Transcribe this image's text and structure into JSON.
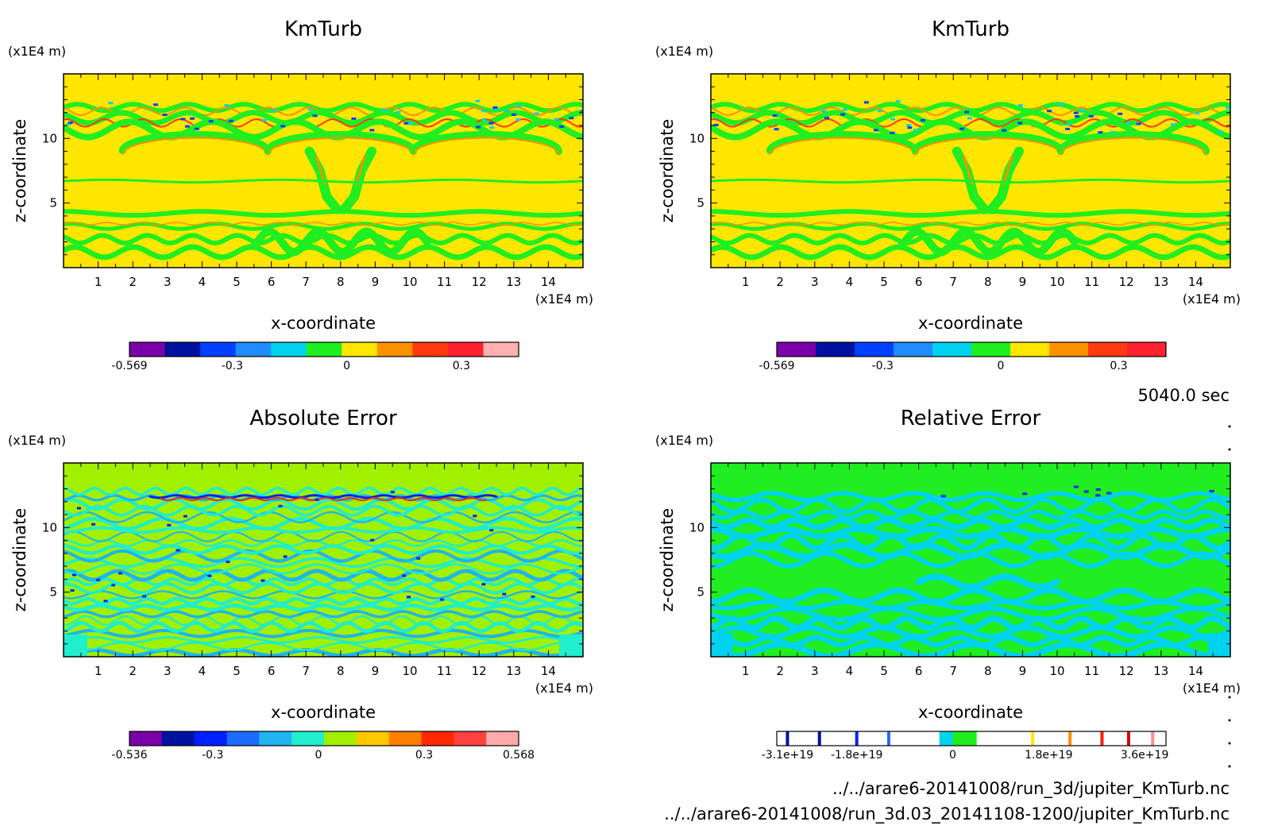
{
  "figure": {
    "time_label": "5040.0 sec",
    "file_paths": [
      "../../arare6-20141008/run_3d/jupiter_KmTurb.nc",
      "../../arare6-20141008/run_3d.03_20141108-1200/jupiter_KmTurb.nc"
    ]
  },
  "chart_data": [
    {
      "type": "heatmap",
      "title": "KmTurb",
      "xlabel": "x-coordinate",
      "ylabel": "z-coordinate",
      "x_unit": "(x1E4 m)",
      "y_unit": "(x1E4 m)",
      "xlim": [
        0,
        15
      ],
      "ylim": [
        0,
        15
      ],
      "x_ticks": [
        1,
        2,
        3,
        4,
        5,
        6,
        7,
        8,
        9,
        10,
        11,
        12,
        13,
        14
      ],
      "y_ticks": [
        5,
        10
      ],
      "background_color": "#ffe600",
      "pattern": "kmturb",
      "colorbar": {
        "colors": [
          "#7a00a8",
          "#0010a0",
          "#0040ff",
          "#1e8cff",
          "#00d2f0",
          "#20ee20",
          "#ffe600",
          "#ff9000",
          "#ff3a10",
          "#ff2030",
          "#ffb0b0"
        ],
        "tick_labels": [
          "-0.569",
          "-0.3",
          "0",
          "0.3"
        ],
        "tick_values": [
          -0.569,
          -0.3,
          0,
          0.3
        ],
        "range": [
          -0.569,
          0.45
        ]
      }
    },
    {
      "type": "heatmap",
      "title": "KmTurb",
      "xlabel": "x-coordinate",
      "ylabel": "z-coordinate",
      "x_unit": "(x1E4 m)",
      "y_unit": "(x1E4 m)",
      "xlim": [
        0,
        15
      ],
      "ylim": [
        0,
        15
      ],
      "x_ticks": [
        1,
        2,
        3,
        4,
        5,
        6,
        7,
        8,
        9,
        10,
        11,
        12,
        13,
        14
      ],
      "y_ticks": [
        5,
        10
      ],
      "background_color": "#ffe600",
      "pattern": "kmturb",
      "colorbar": {
        "colors": [
          "#7a00a8",
          "#0010a0",
          "#0040ff",
          "#1e8cff",
          "#00d2f0",
          "#20ee20",
          "#ffe600",
          "#ff9000",
          "#ff3a10",
          "#ff2030"
        ],
        "tick_labels": [
          "-0.569",
          "-0.3",
          "0",
          "0.3"
        ],
        "tick_values": [
          -0.569,
          -0.3,
          0,
          0.3
        ],
        "range": [
          -0.569,
          0.42
        ]
      }
    },
    {
      "type": "heatmap",
      "title": "Absolute Error",
      "xlabel": "x-coordinate",
      "ylabel": "z-coordinate",
      "x_unit": "(x1E4 m)",
      "y_unit": "(x1E4 m)",
      "xlim": [
        0,
        15
      ],
      "ylim": [
        0,
        15
      ],
      "x_ticks": [
        1,
        2,
        3,
        4,
        5,
        6,
        7,
        8,
        9,
        10,
        11,
        12,
        13,
        14
      ],
      "y_ticks": [
        5,
        10
      ],
      "background_color": "#a0f000",
      "pattern": "abserr",
      "colorbar": {
        "colors": [
          "#7a00a8",
          "#0010a0",
          "#0020ff",
          "#1e6cff",
          "#20b4f0",
          "#20eecc",
          "#a0f000",
          "#ffc800",
          "#ff8000",
          "#ff2800",
          "#ff4040",
          "#ffaaaa"
        ],
        "tick_labels": [
          "-0.536",
          "-0.3",
          "0",
          "0.3",
          "0.568"
        ],
        "tick_values": [
          -0.536,
          -0.3,
          0,
          0.3,
          0.568
        ],
        "range": [
          -0.536,
          0.568
        ]
      }
    },
    {
      "type": "heatmap",
      "title": "Relative Error",
      "xlabel": "x-coordinate",
      "ylabel": "z-coordinate",
      "x_unit": "(x1E4 m)",
      "y_unit": "(x1E4 m)",
      "xlim": [
        0,
        15
      ],
      "ylim": [
        0,
        15
      ],
      "x_ticks": [
        1,
        2,
        3,
        4,
        5,
        6,
        7,
        8,
        9,
        10,
        11,
        12,
        13,
        14
      ],
      "y_ticks": [
        5,
        10
      ],
      "background_color": "#20ee20",
      "pattern": "relerr",
      "colorbar": {
        "segments": [
          {
            "value": -3.1e+19,
            "color": "#0010a0"
          },
          {
            "value": -2.5e+19,
            "color": "#0010a0"
          },
          {
            "value": -1.8e+19,
            "color": "#0020ff"
          },
          {
            "value": -1.2e+19,
            "color": "#1e6cff"
          },
          {
            "value": -2.5e+18,
            "color": "#00d2f0",
            "wide_to": 0.0
          },
          {
            "value": 0.0,
            "color": "#20ee20",
            "wide_to": 4.5e+18
          },
          {
            "value": 1.5e+19,
            "color": "#ffe600"
          },
          {
            "value": 2.2e+19,
            "color": "#ff9000"
          },
          {
            "value": 2.8e+19,
            "color": "#ff2000"
          },
          {
            "value": 3.3e+19,
            "color": "#e00000"
          },
          {
            "value": 3.75e+19,
            "color": "#ff9090"
          }
        ],
        "tick_labels": [
          "-3.1e+19",
          "-1.8e+19",
          "0",
          "1.8e+19",
          "3.6e+19"
        ],
        "tick_values": [
          -3.1e+19,
          -1.8e+19,
          0,
          1.8e+19,
          3.6e+19
        ],
        "range": [
          -3.3e+19,
          4e+19
        ]
      }
    }
  ]
}
